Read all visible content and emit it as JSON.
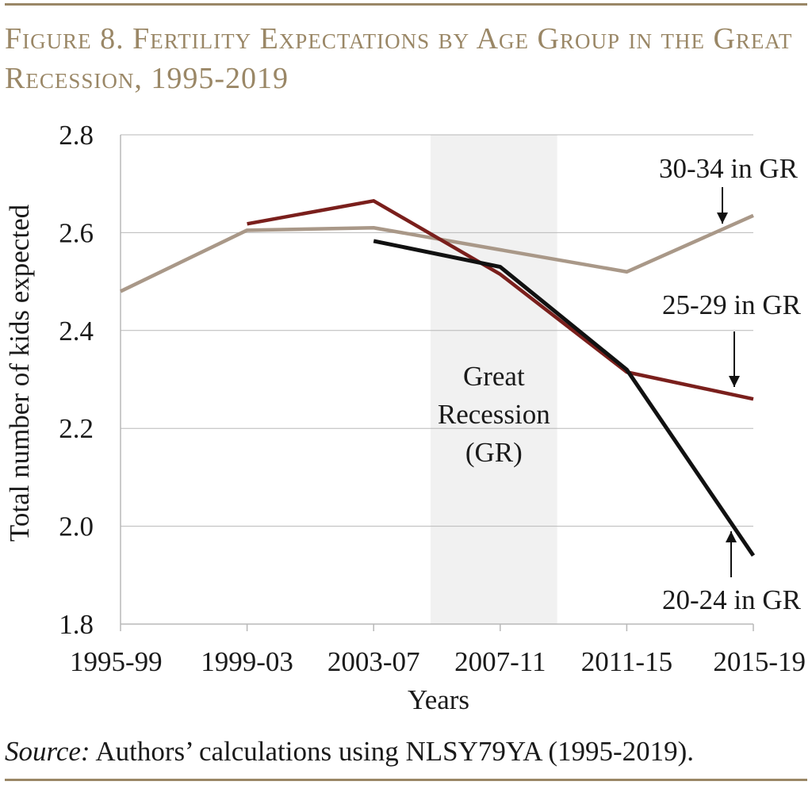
{
  "title": "Figure 8. Fertility Expectations by Age Group in the Great Recession, 1995-2019",
  "source": {
    "label": "Source:",
    "text": " Authors’ calculations using NLSY79YA (1995-2019)."
  },
  "chart_data": {
    "type": "line",
    "xlabel": "Years",
    "ylabel": "Total number of kids expected",
    "categories": [
      "1995-99",
      "1999-03",
      "2003-07",
      "2007-11",
      "2011-15",
      "2015-19"
    ],
    "ylim": [
      1.8,
      2.8
    ],
    "yticks": [
      "1.8",
      "2.0",
      "2.2",
      "2.4",
      "2.6",
      "2.8"
    ],
    "grid": "horizontal",
    "shaded_region": {
      "from": 2.45,
      "to": 3.45,
      "label_lines": [
        "Great",
        "Recession",
        "(GR)"
      ],
      "color": "#f1f1f1"
    },
    "series": [
      {
        "name": "30-34 in GR",
        "color": "#a99888",
        "x": [
          0,
          1,
          2,
          3,
          4,
          5
        ],
        "values": [
          2.48,
          2.605,
          2.61,
          2.565,
          2.52,
          2.635
        ]
      },
      {
        "name": "25-29 in GR",
        "color": "#7a1f1c",
        "x": [
          1,
          2,
          3,
          4,
          5
        ],
        "values": [
          2.618,
          2.665,
          2.515,
          2.315,
          2.26
        ]
      },
      {
        "name": "20-24 in GR",
        "color": "#111111",
        "x": [
          2,
          3,
          4,
          5
        ],
        "values": [
          2.583,
          2.53,
          2.32,
          1.94
        ]
      }
    ],
    "annotations": [
      {
        "text": "30-34 in GR",
        "series": 0,
        "arrow": "down",
        "anchor": "top-right"
      },
      {
        "text": "25-29 in GR",
        "series": 1,
        "arrow": "down",
        "anchor": "right"
      },
      {
        "text": "20-24 in GR",
        "series": 2,
        "arrow": "up",
        "anchor": "bottom-right"
      }
    ]
  }
}
